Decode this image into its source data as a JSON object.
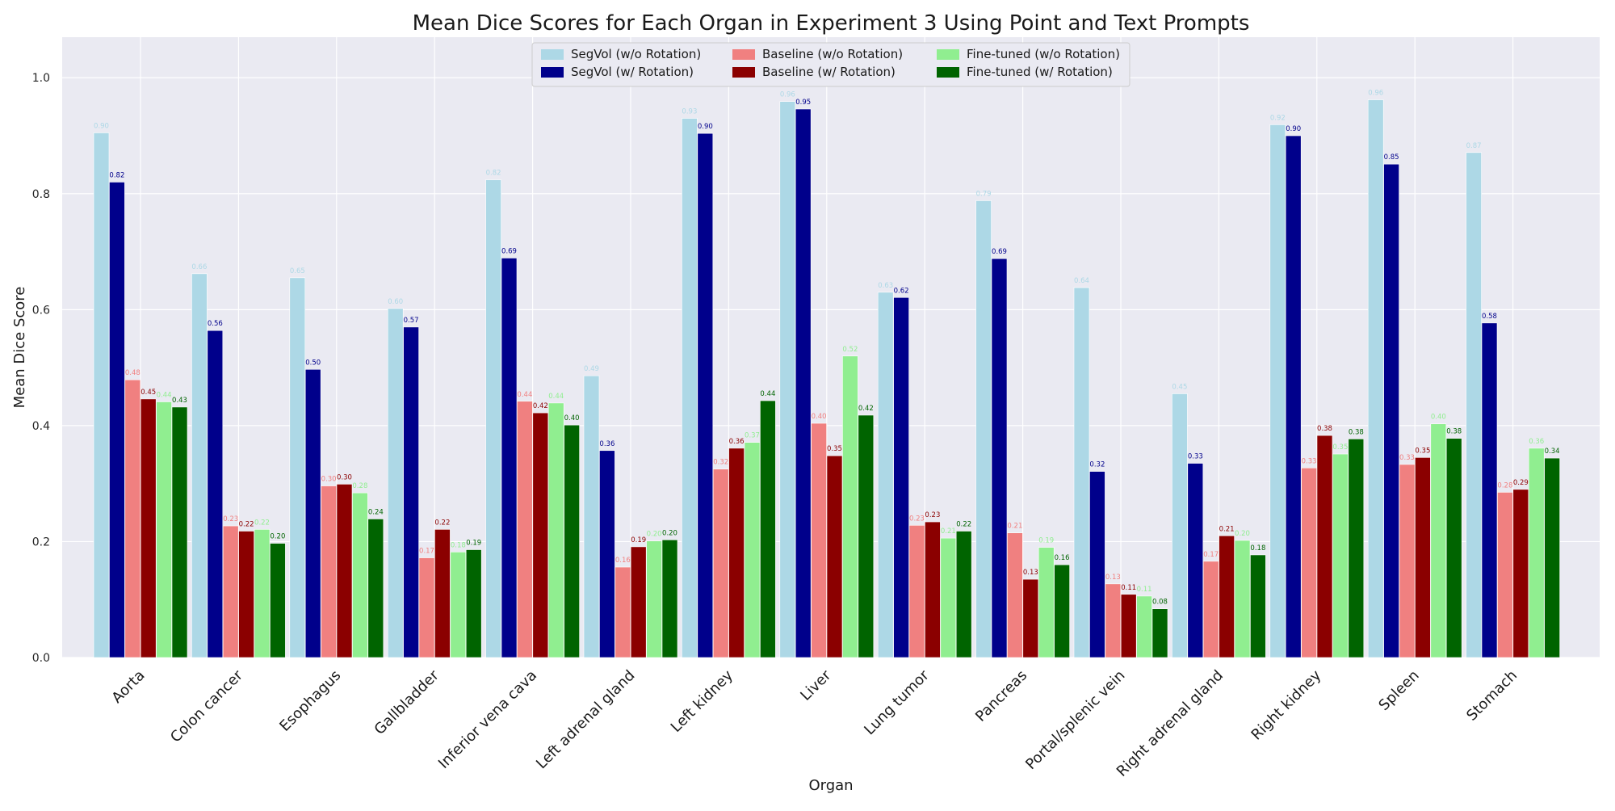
{
  "chart_data": {
    "type": "bar",
    "title": "Mean Dice Scores for Each Organ in Experiment 3 Using Point and Text Prompts",
    "xlabel": "Organ",
    "ylabel": "Mean Dice Score",
    "ylim": [
      0,
      1.07
    ],
    "yticks": [
      "0.0",
      "0.2",
      "0.4",
      "0.6",
      "0.8",
      "1.0"
    ],
    "grid": true,
    "legend_position": "top-center",
    "categories": [
      "Aorta",
      "Colon cancer",
      "Esophagus",
      "Gallbladder",
      "Inferior vena cava",
      "Left adrenal gland",
      "Left kidney",
      "Liver",
      "Lung tumor",
      "Pancreas",
      "Portal/splenic vein",
      "Right adrenal gland",
      "Right kidney",
      "Spleen",
      "Stomach"
    ],
    "series": [
      {
        "name": "SegVol (w/o Rotation)",
        "color": "#add8e6",
        "values": [
          0.905,
          0.662,
          0.655,
          0.602,
          0.824,
          0.486,
          0.93,
          0.959,
          0.63,
          0.788,
          0.638,
          0.455,
          0.919,
          0.962,
          0.871
        ],
        "labels": [
          "0.90",
          "0.66",
          "0.65",
          "0.60",
          "0.82",
          "0.49",
          "0.93",
          "0.96",
          "0.63",
          "0.79",
          "0.64",
          "0.45",
          "0.92",
          "0.96",
          "0.87"
        ]
      },
      {
        "name": "SegVol (w/ Rotation)",
        "color": "#00008b",
        "values": [
          0.82,
          0.564,
          0.497,
          0.57,
          0.689,
          0.357,
          0.904,
          0.946,
          0.621,
          0.688,
          0.321,
          0.335,
          0.9,
          0.851,
          0.577
        ],
        "labels": [
          "0.82",
          "0.56",
          "0.50",
          "0.57",
          "0.69",
          "0.36",
          "0.90",
          "0.95",
          "0.62",
          "0.69",
          "0.32",
          "0.33",
          "0.90",
          "0.85",
          "0.58"
        ]
      },
      {
        "name": "Baseline (w/o Rotation)",
        "color": "#f08080",
        "values": [
          0.479,
          0.227,
          0.296,
          0.172,
          0.442,
          0.156,
          0.325,
          0.404,
          0.228,
          0.215,
          0.127,
          0.166,
          0.327,
          0.333,
          0.285
        ],
        "labels": [
          "0.48",
          "0.23",
          "0.30",
          "0.17",
          "0.44",
          "0.16",
          "0.32",
          "0.40",
          "0.23",
          "0.21",
          "0.13",
          "0.17",
          "0.33",
          "0.33",
          "0.28"
        ]
      },
      {
        "name": "Baseline (w/ Rotation)",
        "color": "#8b0000",
        "values": [
          0.446,
          0.218,
          0.299,
          0.221,
          0.422,
          0.191,
          0.361,
          0.348,
          0.234,
          0.135,
          0.109,
          0.21,
          0.383,
          0.345,
          0.29
        ],
        "labels": [
          "0.45",
          "0.22",
          "0.30",
          "0.22",
          "0.42",
          "0.19",
          "0.36",
          "0.35",
          "0.23",
          "0.13",
          "0.11",
          "0.21",
          "0.38",
          "0.35",
          "0.29"
        ]
      },
      {
        "name": "Fine-tuned (w/o Rotation)",
        "color": "#90ee90",
        "values": [
          0.441,
          0.221,
          0.284,
          0.182,
          0.439,
          0.201,
          0.371,
          0.52,
          0.206,
          0.19,
          0.106,
          0.202,
          0.351,
          0.403,
          0.361
        ],
        "labels": [
          "0.44",
          "0.22",
          "0.28",
          "0.18",
          "0.44",
          "0.20",
          "0.37",
          "0.52",
          "0.21",
          "0.19",
          "0.11",
          "0.20",
          "0.35",
          "0.40",
          "0.36"
        ]
      },
      {
        "name": "Fine-tuned (w/ Rotation)",
        "color": "#006400",
        "values": [
          0.432,
          0.197,
          0.239,
          0.186,
          0.401,
          0.203,
          0.443,
          0.418,
          0.218,
          0.16,
          0.084,
          0.177,
          0.377,
          0.378,
          0.344
        ],
        "labels": [
          "0.43",
          "0.20",
          "0.24",
          "0.19",
          "0.40",
          "0.20",
          "0.44",
          "0.42",
          "0.22",
          "0.16",
          "0.08",
          "0.18",
          "0.38",
          "0.38",
          "0.34"
        ]
      }
    ]
  }
}
